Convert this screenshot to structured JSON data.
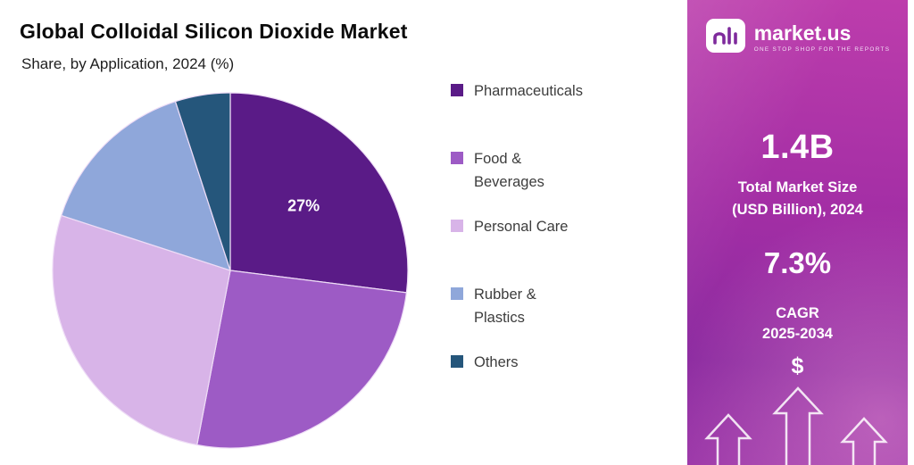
{
  "header": {
    "title": "Global Colloidal Silicon Dioxide Market",
    "subtitle": "Share, by Application, 2024 (%)"
  },
  "chart_data": {
    "type": "pie",
    "title": "Global Colloidal Silicon Dioxide Market",
    "subtitle": "Share, by Application, 2024 (%)",
    "categories": [
      "Pharmaceuticals",
      "Food & Beverages",
      "Personal Care",
      "Rubber & Plastics",
      "Others"
    ],
    "values": [
      27,
      26,
      27,
      15,
      5
    ],
    "unit": "%",
    "colors": [
      "#5a1b87",
      "#9d5bc5",
      "#d8b4e8",
      "#8fa7da",
      "#25567b"
    ],
    "start_angle": 0,
    "direction": "clockwise",
    "legend_position": "right",
    "data_labels": [
      {
        "index": 0,
        "text": "27%"
      }
    ]
  },
  "sidebar": {
    "brand": {
      "name": "market.us",
      "tagline": "ONE STOP SHOP FOR THE REPORTS"
    },
    "stats": [
      {
        "value": "1.4B",
        "label_line1": "Total Market Size",
        "label_line2": "(USD Billion), 2024"
      },
      {
        "value": "7.3%",
        "label_line1": "CAGR",
        "label_line2": "2025-2034"
      }
    ],
    "dollar_symbol": "$",
    "accent_gradient": [
      "#bd3dac",
      "#8c2ba0"
    ]
  }
}
